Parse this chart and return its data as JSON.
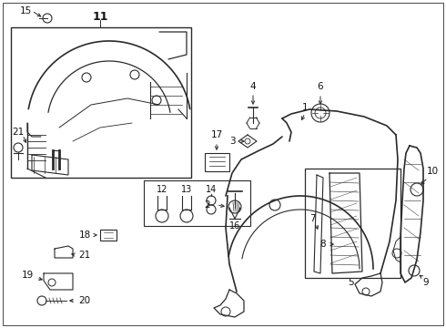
{
  "bg_color": "#ffffff",
  "line_color": "#2a2a2a",
  "text_color": "#111111",
  "fig_w": 4.9,
  "fig_h": 3.6,
  "dpi": 100
}
